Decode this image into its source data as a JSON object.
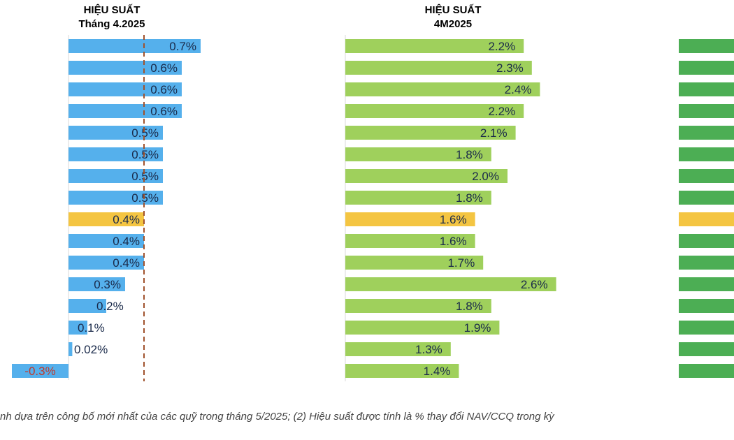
{
  "chart_data": [
    {
      "type": "bar",
      "orientation": "horizontal",
      "title": "HIỆU SUẤT",
      "subtitle": "Tháng 4.2025",
      "values": [
        0.7,
        0.6,
        0.6,
        0.6,
        0.5,
        0.5,
        0.5,
        0.5,
        0.4,
        0.4,
        0.4,
        0.3,
        0.2,
        0.1,
        0.02,
        -0.3
      ],
      "labels": [
        "0.7%",
        "0.6%",
        "0.6%",
        "0.6%",
        "0.5%",
        "0.5%",
        "0.5%",
        "0.5%",
        "0.4%",
        "0.4%",
        "0.4%",
        "0.3%",
        "0.2%",
        "0.1%",
        "0.02%",
        "-0.3%"
      ],
      "highlight_index": 8,
      "reference_line": 0.4,
      "colors": {
        "bar": "#55b0ec",
        "highlight": "#f4c542",
        "negative_label": "#c0392b",
        "reference_line": "#a0522d"
      }
    },
    {
      "type": "bar",
      "orientation": "horizontal",
      "title": "HIỆU SUẤT",
      "subtitle": "4M2025",
      "values": [
        2.2,
        2.3,
        2.4,
        2.2,
        2.1,
        1.8,
        2.0,
        1.8,
        1.6,
        1.6,
        1.7,
        2.6,
        1.8,
        1.9,
        1.3,
        1.4
      ],
      "labels": [
        "2.2%",
        "2.3%",
        "2.4%",
        "2.2%",
        "2.1%",
        "1.8%",
        "2.0%",
        "1.8%",
        "1.6%",
        "1.6%",
        "1.7%",
        "2.6%",
        "1.8%",
        "1.9%",
        "1.3%",
        "1.4%"
      ],
      "highlight_index": 8,
      "colors": {
        "bar": "#9fd05c",
        "highlight": "#f4c542"
      }
    },
    {
      "type": "bar",
      "orientation": "horizontal",
      "partially_visible": true,
      "highlight_index": 8,
      "colors": {
        "bar": "#4cae54",
        "highlight": "#f4c542"
      }
    }
  ],
  "footnote": "nh dựa trên công bố mới nhất của các quỹ trong tháng 5/2025; (2) Hiệu suất được tính là % thay đổi NAV/CCQ trong kỳ"
}
